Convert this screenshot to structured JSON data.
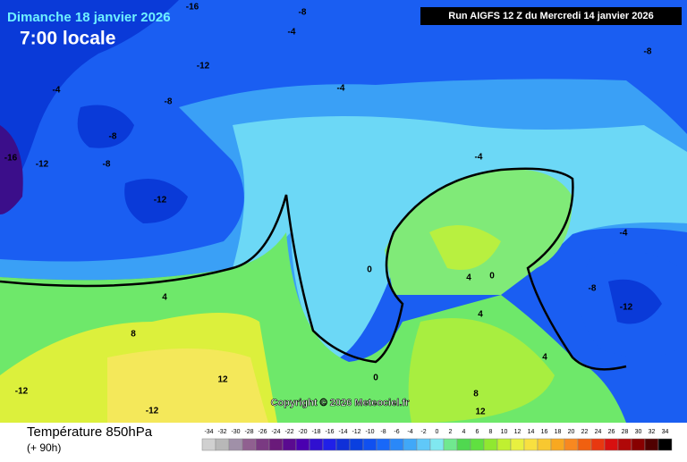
{
  "header": {
    "date": "Dimanche 18 janvier 2026",
    "time": "7:00 locale",
    "run": "Run AIGFS 12 Z du Mercredi 14 janvier 2026"
  },
  "copyright": "Copyright © 2026 Meteociel.fr",
  "footer": {
    "title": "Température 850hPa",
    "lead": "(+ 90h)"
  },
  "contour_labels": [
    "-16",
    "-8",
    "-4",
    "-12",
    "-8",
    "-4",
    "-4",
    "-8",
    "-8",
    "-16",
    "-12",
    "-8",
    "-4",
    "-12",
    "-4",
    "0",
    "4",
    "0",
    "-8",
    "-12",
    "4",
    "8",
    "4",
    "4",
    "12",
    "0",
    "-12",
    "8",
    "-12",
    "12"
  ],
  "legend": {
    "ticks": [
      -34,
      -32,
      -30,
      -28,
      -26,
      -24,
      -22,
      -20,
      -18,
      -16,
      -14,
      -12,
      -10,
      -8,
      -6,
      -4,
      -2,
      0,
      2,
      4,
      6,
      8,
      10,
      12,
      14,
      16,
      18,
      20,
      22,
      24,
      26,
      28,
      30,
      32,
      34
    ],
    "colors": [
      "#d0d0d0",
      "#b8b8b8",
      "#a090a8",
      "#906090",
      "#7a3a82",
      "#6a1a7a",
      "#5a0a90",
      "#4a00b0",
      "#3010d0",
      "#2020e8",
      "#1030d8",
      "#0a40e0",
      "#1050f0",
      "#1868f8",
      "#2a88f8",
      "#40a8f8",
      "#60c8f8",
      "#80e8f0",
      "#70e890",
      "#50d850",
      "#60e040",
      "#90e830",
      "#c0f030",
      "#e8f040",
      "#f8e040",
      "#f8c830",
      "#f8a820",
      "#f88820",
      "#f06010",
      "#e83810",
      "#d81010",
      "#b00808",
      "#880000",
      "#500000",
      "#000000"
    ]
  }
}
